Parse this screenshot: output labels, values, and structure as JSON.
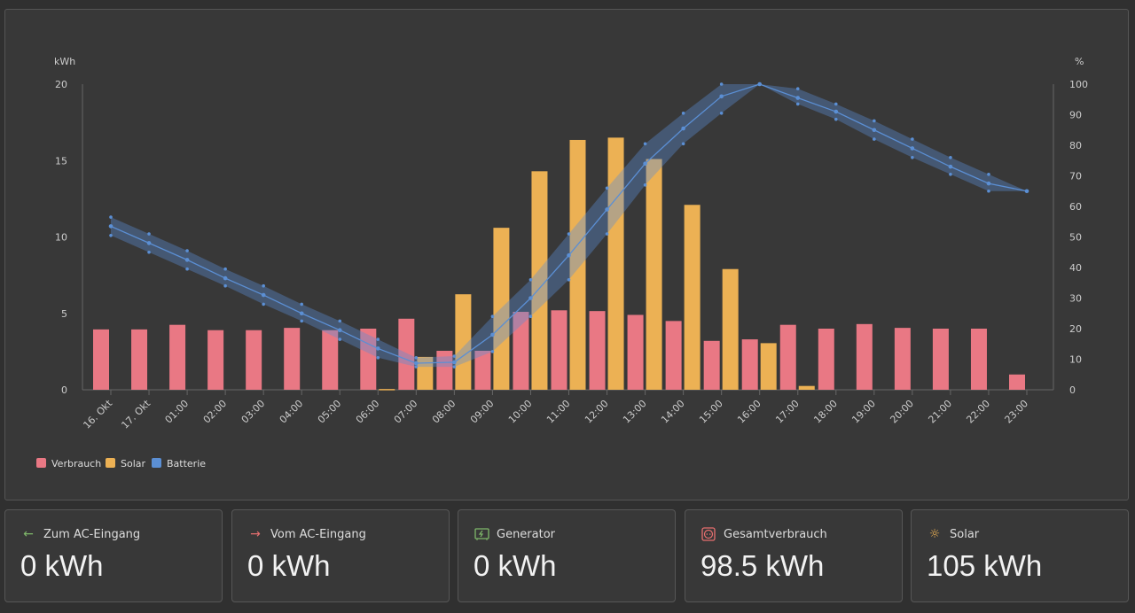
{
  "chart_data": {
    "type": "bar",
    "categories": [
      "16. Okt",
      "17. Okt",
      "01:00",
      "02:00",
      "03:00",
      "04:00",
      "05:00",
      "06:00",
      "07:00",
      "08:00",
      "09:00",
      "10:00",
      "11:00",
      "12:00",
      "13:00",
      "14:00",
      "15:00",
      "16:00",
      "17:00",
      "18:00",
      "19:00",
      "20:00",
      "21:00",
      "22:00",
      "23:00"
    ],
    "ylabel": "kWh",
    "y2label": "%",
    "ylim": [
      0,
      20
    ],
    "y2lim": [
      0,
      100
    ],
    "yticks": [
      "0",
      "5",
      "10",
      "15",
      "20"
    ],
    "y2ticks": [
      "0",
      "10",
      "20",
      "30",
      "40",
      "50",
      "60",
      "70",
      "80",
      "90",
      "100"
    ],
    "legend_position": "bottom-left",
    "series": [
      {
        "name": "Verbrauch",
        "type": "bar",
        "axis": "left",
        "color": "#e97884",
        "values": [
          3.95,
          3.95,
          4.25,
          3.9,
          3.9,
          4.05,
          3.9,
          4.0,
          4.65,
          2.55,
          2.55,
          5.1,
          5.2,
          5.15,
          4.9,
          4.5,
          3.2,
          3.3,
          4.25,
          4.0,
          4.3,
          4.05,
          4.0,
          4.0,
          1.0
        ]
      },
      {
        "name": "Solar",
        "type": "bar",
        "axis": "left",
        "color": "#ecb154",
        "values": [
          0,
          0,
          0,
          0,
          0,
          0,
          0,
          0.05,
          2.15,
          6.25,
          10.6,
          14.3,
          16.35,
          16.5,
          15.1,
          12.1,
          7.9,
          3.05,
          0.25,
          0,
          0,
          0,
          0,
          0,
          0
        ]
      },
      {
        "name": "Batterie",
        "type": "line",
        "axis": "right",
        "color": "#5b8fd4",
        "values": [
          53.5,
          48,
          42.5,
          36.5,
          31,
          25,
          19.5,
          13.5,
          8.7,
          9,
          18,
          30,
          44,
          59,
          74,
          85.5,
          96,
          100,
          95.5,
          91,
          85,
          79,
          73,
          67.5,
          65
        ],
        "min": [
          50.5,
          45,
          39.5,
          34,
          28,
          22.5,
          16.5,
          10.5,
          7.5,
          7.5,
          12.5,
          24,
          36,
          51,
          67,
          80.5,
          90.5,
          100,
          93.5,
          88.5,
          82,
          76,
          70.5,
          65,
          65
        ],
        "max": [
          56.5,
          51,
          45.5,
          39.5,
          34,
          28,
          22.5,
          16.5,
          10.5,
          11,
          24,
          36,
          51,
          66,
          80.5,
          90.5,
          100,
          100,
          98.5,
          93.5,
          88,
          82,
          76,
          70.5,
          65
        ]
      }
    ]
  },
  "cards": [
    {
      "label": "Zum AC-Eingang",
      "value": "0 kWh",
      "icon": "arrow-left-icon",
      "color": "#7fb86a"
    },
    {
      "label": "Vom AC-Eingang",
      "value": "0 kWh",
      "icon": "arrow-right-icon",
      "color": "#e66f6f"
    },
    {
      "label": "Generator",
      "value": "0 kWh",
      "icon": "generator-icon",
      "color": "#7fb86a"
    },
    {
      "label": "Gesamtverbrauch",
      "value": "98.5 kWh",
      "icon": "socket-icon",
      "color": "#e66f6f"
    },
    {
      "label": "Solar",
      "value": "105 kWh",
      "icon": "sun-icon",
      "color": "#ecb154"
    }
  ]
}
